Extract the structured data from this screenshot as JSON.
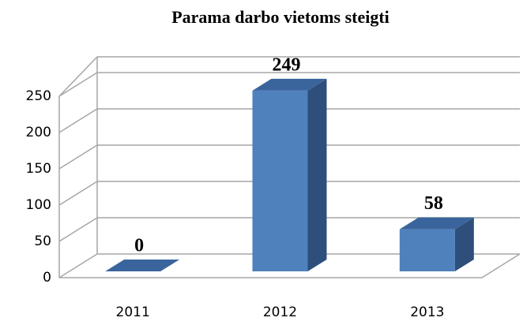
{
  "chart_data": {
    "type": "bar3d",
    "title": "Parama darbo vietoms steigti",
    "categories": [
      "2011",
      "2012",
      "2013"
    ],
    "values": [
      0,
      249,
      58
    ],
    "color": "#4f81bd",
    "ylim": [
      0,
      250
    ],
    "yticks": [
      0,
      50,
      100,
      150,
      200,
      250
    ],
    "grid": true
  }
}
